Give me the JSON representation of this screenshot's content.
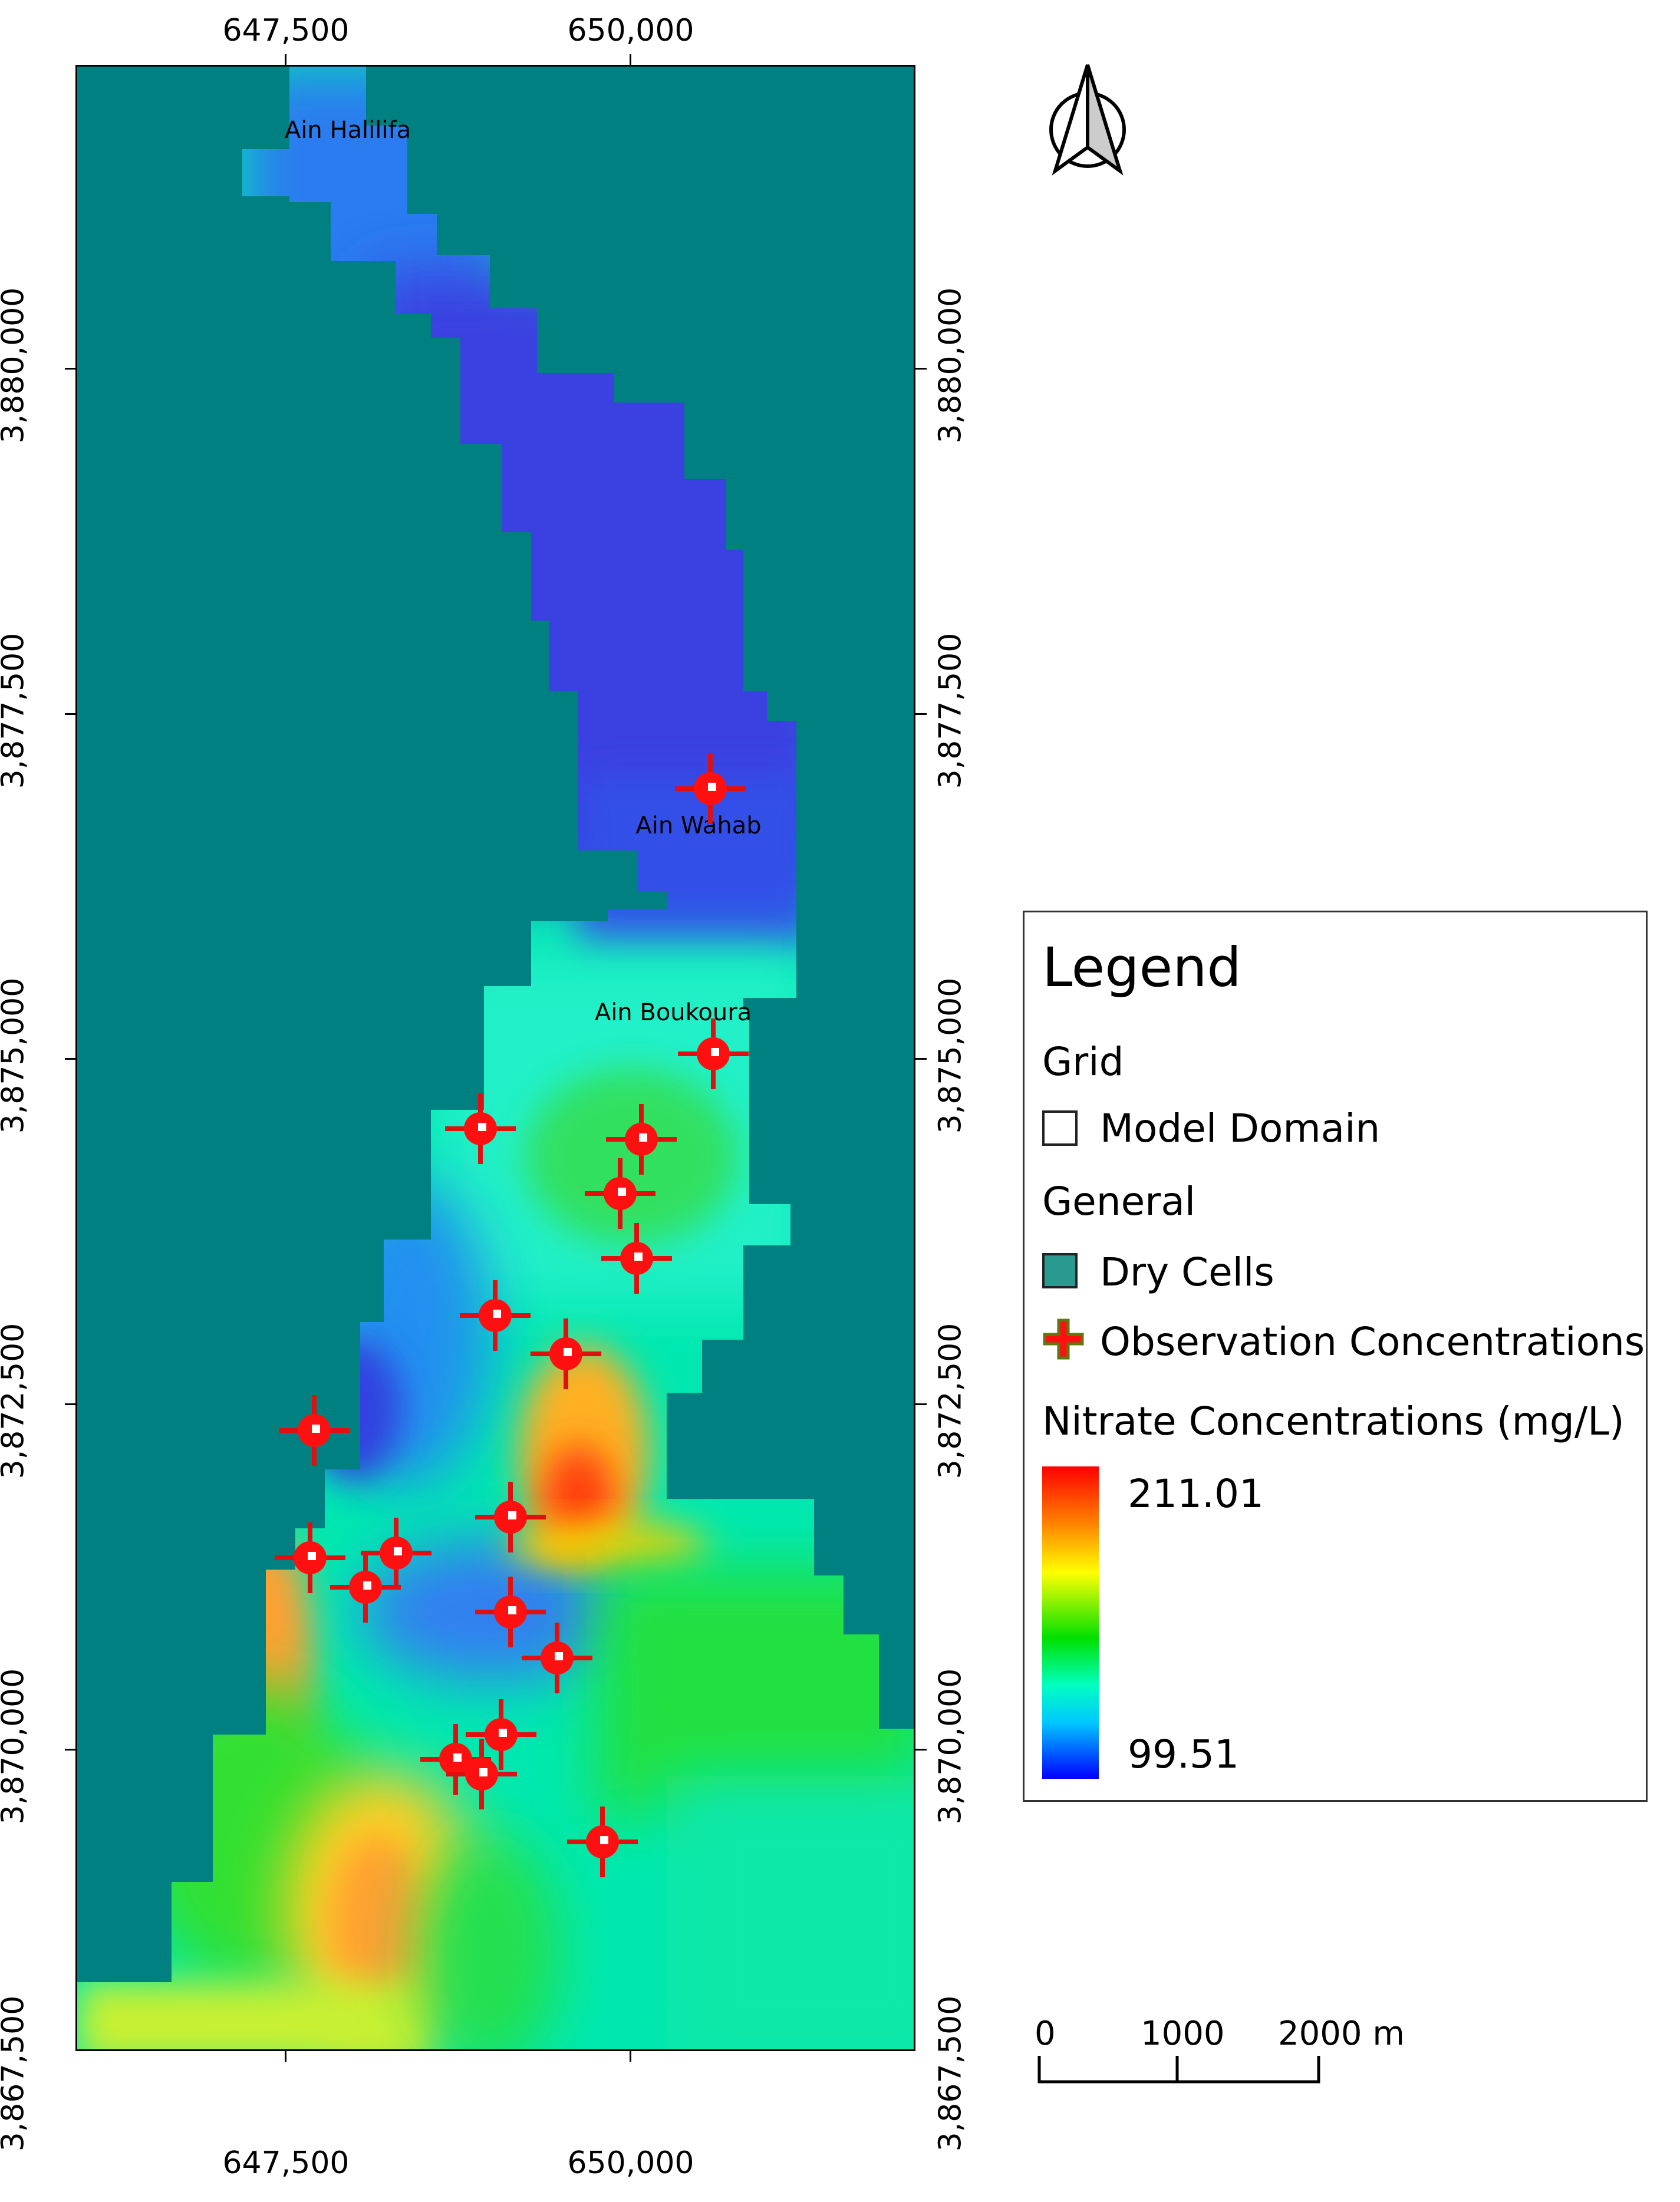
{
  "map": {
    "x_ticks": [
      "647,500",
      "650,000"
    ],
    "y_ticks": [
      "3,880,000",
      "3,877,500",
      "3,875,000",
      "3,872,500",
      "3,870,000",
      "3,867,500"
    ],
    "places": [
      "Ain Halilifa",
      "Ain Wahab",
      "Ain Boukoura"
    ],
    "colors": {
      "dry_cells": "#008080",
      "marker": "#ff0000",
      "frame": "#000000"
    }
  },
  "legend": {
    "title": "Legend",
    "group_grid": "Grid",
    "model_domain": "Model Domain",
    "group_general": "General",
    "dry_cells": "Dry Cells",
    "observation": "Observation Concentrations",
    "nitrate_title": "Nitrate Concentrations (mg/L)",
    "max_value": "211.01",
    "min_value": "99.51"
  },
  "scale_bar": {
    "labels": [
      "0",
      "1000",
      "2000 m"
    ]
  },
  "north_arrow": {
    "icon": "north-arrow-icon"
  }
}
